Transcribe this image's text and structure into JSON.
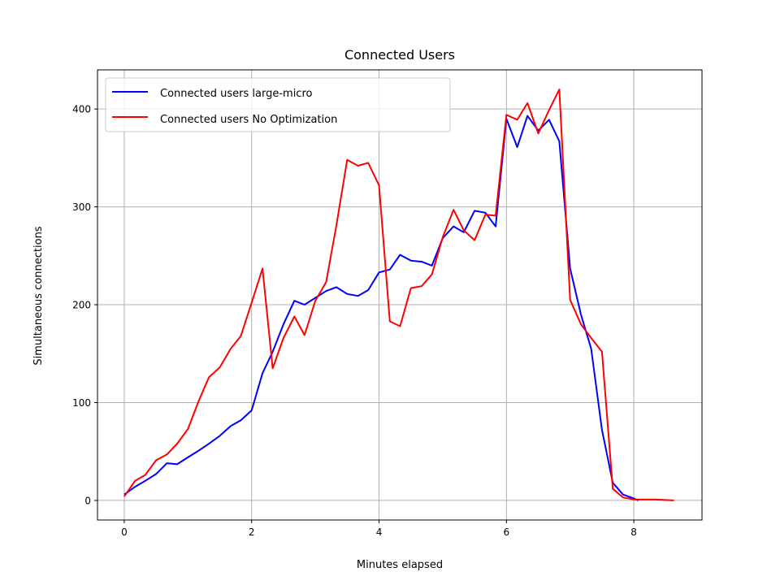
{
  "chart_data": {
    "type": "line",
    "title": "Connected Users",
    "xlabel": "Minutes elapsed",
    "ylabel": "Simultaneous connections",
    "xlim": [
      -0.42,
      9.07
    ],
    "ylim": [
      -20,
      440
    ],
    "xticks": [
      0,
      2,
      4,
      6,
      8
    ],
    "yticks": [
      0,
      100,
      200,
      300,
      400
    ],
    "grid": true,
    "legend_position": "top-left",
    "series": [
      {
        "name": "Connected users large-micro",
        "color": "#0000ff",
        "x": [
          0,
          0.17,
          0.33,
          0.5,
          0.67,
          0.83,
          1.0,
          1.17,
          1.33,
          1.5,
          1.67,
          1.83,
          2.0,
          2.17,
          2.33,
          2.5,
          2.67,
          2.83,
          3.0,
          3.17,
          3.33,
          3.5,
          3.67,
          3.83,
          4.0,
          4.17,
          4.33,
          4.5,
          4.67,
          4.83,
          5.0,
          5.17,
          5.33,
          5.5,
          5.67,
          5.83,
          6.0,
          6.17,
          6.33,
          6.5,
          6.67,
          6.83,
          7.0,
          7.17,
          7.33,
          7.5,
          7.67,
          7.83,
          8.0,
          8.07
        ],
        "y": [
          6,
          14,
          20,
          27,
          38,
          37,
          44,
          51,
          58,
          66,
          76,
          82,
          92,
          130,
          152,
          180,
          204,
          200,
          207,
          214,
          218,
          211,
          209,
          215,
          233,
          236,
          251,
          245,
          244,
          240,
          268,
          280,
          274,
          296,
          294,
          280,
          390,
          361,
          393,
          378,
          389,
          367,
          237,
          190,
          155,
          72,
          18,
          6,
          2,
          0
        ]
      },
      {
        "name": "Connected users No Optimization",
        "color": "#ff0000",
        "x": [
          0,
          0.17,
          0.33,
          0.5,
          0.67,
          0.83,
          1.0,
          1.17,
          1.33,
          1.5,
          1.67,
          1.83,
          2.0,
          2.17,
          2.33,
          2.5,
          2.67,
          2.83,
          3.0,
          3.17,
          3.33,
          3.5,
          3.67,
          3.83,
          4.0,
          4.17,
          4.33,
          4.5,
          4.67,
          4.83,
          5.0,
          5.17,
          5.33,
          5.5,
          5.67,
          5.83,
          6.0,
          6.17,
          6.33,
          6.5,
          6.67,
          6.83,
          7.0,
          7.17,
          7.33,
          7.5,
          7.67,
          7.83,
          8.0,
          8.33,
          8.63
        ],
        "y": [
          4,
          20,
          26,
          41,
          47,
          58,
          73,
          102,
          126,
          136,
          155,
          168,
          202,
          237,
          135,
          166,
          188,
          169,
          204,
          223,
          281,
          348,
          342,
          345,
          322,
          183,
          178,
          217,
          219,
          231,
          269,
          297,
          276,
          266,
          292,
          291,
          394,
          389,
          406,
          375,
          399,
          420,
          205,
          180,
          166,
          152,
          12,
          3,
          1,
          1,
          0
        ]
      }
    ]
  }
}
